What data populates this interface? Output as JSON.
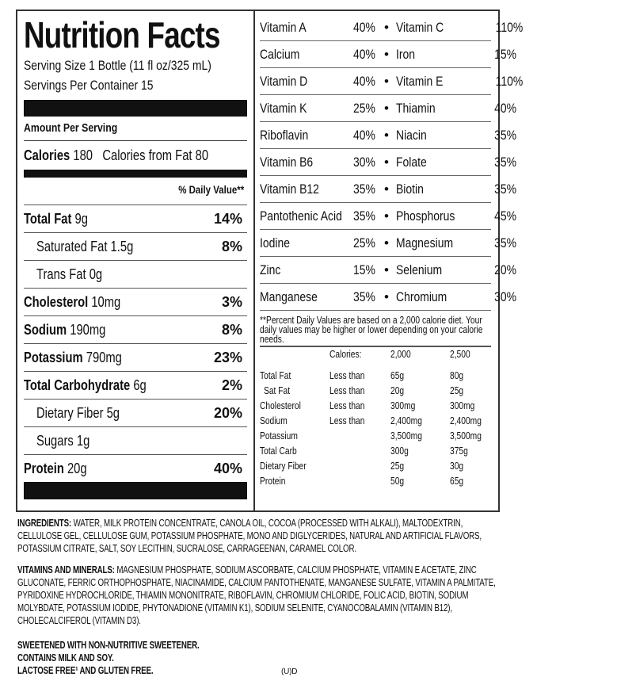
{
  "label": {
    "title": "Nutrition Facts",
    "serving_size": "Serving Size 1 Bottle (11 fl oz/325 mL)",
    "servings_per_container": "Servings Per Container 15",
    "amount_per_serving": "Amount Per Serving",
    "calories_label": "Calories",
    "calories_value": "180",
    "calories_from_fat": "Calories from Fat 80",
    "daily_value_header": "% Daily Value**",
    "nutrients": [
      {
        "name": "Total Fat",
        "amount": "9g",
        "pct": "14%",
        "bold": true,
        "indent": false
      },
      {
        "name": "Saturated Fat",
        "amount": "1.5g",
        "pct": "8%",
        "bold": false,
        "indent": true
      },
      {
        "name": "Trans Fat",
        "amount": "0g",
        "pct": "",
        "bold": false,
        "indent": true
      },
      {
        "name": "Cholesterol",
        "amount": "10mg",
        "pct": "3%",
        "bold": true,
        "indent": false
      },
      {
        "name": "Sodium",
        "amount": "190mg",
        "pct": "8%",
        "bold": true,
        "indent": false
      },
      {
        "name": "Potassium",
        "amount": "790mg",
        "pct": "23%",
        "bold": true,
        "indent": false
      },
      {
        "name": "Total Carbohydrate",
        "amount": "6g",
        "pct": "2%",
        "bold": true,
        "indent": false
      },
      {
        "name": "Dietary Fiber",
        "amount": "5g",
        "pct": "20%",
        "bold": false,
        "indent": true
      },
      {
        "name": "Sugars",
        "amount": "1g",
        "pct": "",
        "bold": false,
        "indent": true
      },
      {
        "name": "Protein",
        "amount": "20g",
        "pct": "40%",
        "bold": true,
        "indent": false
      }
    ],
    "vitamins": [
      [
        "Vitamin A",
        "40%",
        "Vitamin C",
        "110%"
      ],
      [
        "Calcium",
        "40%",
        "Iron",
        "15%"
      ],
      [
        "Vitamin D",
        "40%",
        "Vitamin E",
        "110%"
      ],
      [
        "Vitamin K",
        "25%",
        "Thiamin",
        "40%"
      ],
      [
        "Riboflavin",
        "40%",
        "Niacin",
        "35%"
      ],
      [
        "Vitamin B6",
        "30%",
        "Folate",
        "35%"
      ],
      [
        "Vitamin B12",
        "35%",
        "Biotin",
        "35%"
      ],
      [
        "Pantothenic Acid",
        "35%",
        "Phosphorus",
        "45%"
      ],
      [
        "Iodine",
        "25%",
        "Magnesium",
        "35%"
      ],
      [
        "Zinc",
        "15%",
        "Selenium",
        "20%"
      ],
      [
        "Manganese",
        "35%",
        "Chromium",
        "30%"
      ]
    ],
    "footnote": "**Percent Daily Values are based on a 2,000 calorie diet. Your daily values may be higher or lower depending on your calorie needs.",
    "dv_table": {
      "header": [
        "",
        "Calories:",
        "2,000",
        "2,500"
      ],
      "rows": [
        [
          "Total Fat",
          "Less than",
          "65g",
          "80g"
        ],
        [
          "Sat Fat",
          "Less than",
          "20g",
          "25g"
        ],
        [
          "Cholesterol",
          "Less than",
          "300mg",
          "300mg"
        ],
        [
          "Sodium",
          "Less than",
          "2,400mg",
          "2,400mg"
        ],
        [
          "Potassium",
          "",
          "3,500mg",
          "3,500mg"
        ],
        [
          "Total Carb",
          "",
          "300g",
          "375g"
        ],
        [
          "Dietary Fiber",
          "",
          "25g",
          "30g"
        ],
        [
          "Protein",
          "",
          "50g",
          "65g"
        ]
      ]
    }
  },
  "ingredients": {
    "label": "INGREDIENTS:",
    "text": "WATER, MILK PROTEIN CONCENTRATE, CANOLA OIL, COCOA (PROCESSED WITH ALKALI), MALTODEXTRIN, CELLULOSE GEL, CELLULOSE GUM, POTASSIUM PHOSPHATE, MONO AND DIGLYCERIDES, NATURAL AND ARTIFICIAL FLAVORS, POTASSIUM CITRATE, SALT, SOY LECITHIN, SUCRALOSE, CARRAGEENAN, CARAMEL COLOR."
  },
  "vitamins_minerals": {
    "label": "VITAMINS AND MINERALS:",
    "text": "MAGNESIUM PHOSPHATE, SODIUM ASCORBATE, CALCIUM PHOSPHATE, VITAMIN E ACETATE, ZINC GLUCONATE, FERRIC ORTHOPHOSPHATE, NIACINAMIDE, CALCIUM PANTOTHENATE, MANGANESE SULFATE, VITAMIN A PALMITATE, PYRIDOXINE HYDROCHLORIDE, THIAMIN MONONITRATE, RIBOFLAVIN, CHROMIUM CHLORIDE, FOLIC ACID, BIOTIN, SODIUM MOLYBDATE, POTASSIUM IODIDE, PHYTONADIONE (VITAMIN K1), SODIUM SELENITE, CYANOCOBALAMIN (VITAMIN B12), CHOLECALCIFEROL (VITAMIN D3)."
  },
  "statements": [
    "SWEETENED WITH NON-NUTRITIVE SWEETENER.",
    "CONTAINS MILK AND SOY.",
    "LACTOSE FREE¹ AND GLUTEN FREE."
  ],
  "kosher_mark": "(U)D"
}
